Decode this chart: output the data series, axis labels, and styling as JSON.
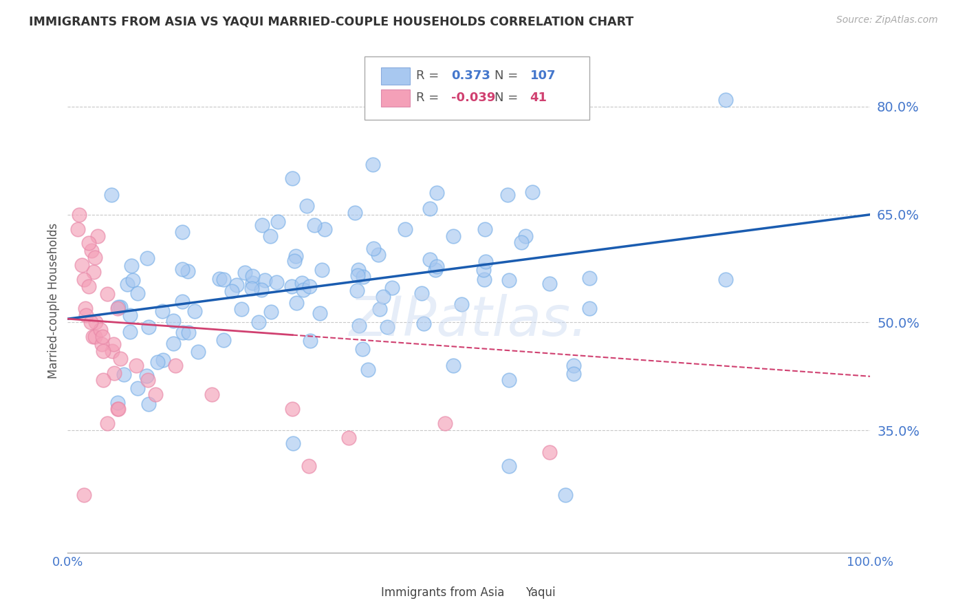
{
  "title": "IMMIGRANTS FROM ASIA VS YAQUI MARRIED-COUPLE HOUSEHOLDS CORRELATION CHART",
  "source_text": "Source: ZipAtlas.com",
  "ylabel": "Married-couple Households",
  "xlim": [
    0.0,
    1.0
  ],
  "ylim": [
    0.18,
    0.88
  ],
  "yticks": [
    0.35,
    0.5,
    0.65,
    0.8
  ],
  "ytick_labels": [
    "35.0%",
    "50.0%",
    "65.0%",
    "80.0%"
  ],
  "xticks": [
    0.0,
    1.0
  ],
  "xtick_labels": [
    "0.0%",
    "100.0%"
  ],
  "blue_R": 0.373,
  "blue_N": 107,
  "pink_R": -0.039,
  "pink_N": 41,
  "blue_color": "#a8c8f0",
  "pink_color": "#f4a0b8",
  "blue_line_color": "#1a5cb0",
  "pink_line_color": "#d04070",
  "legend_blue_label": "Immigrants from Asia",
  "legend_pink_label": "Yaqui",
  "watermark": "ZIPatlas.",
  "background_color": "#ffffff",
  "grid_color": "#c8c8c8",
  "axis_label_color": "#4477cc",
  "title_color": "#333333",
  "source_color": "#aaaaaa"
}
